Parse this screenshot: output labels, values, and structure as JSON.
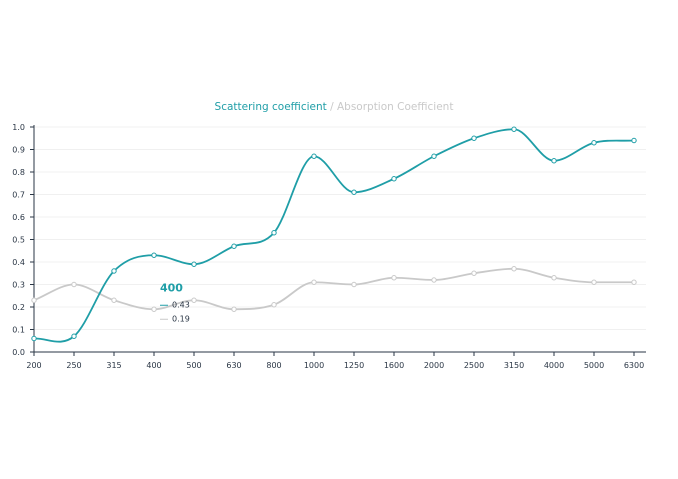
{
  "legend": {
    "series1": "Scattering coefficient",
    "separator": " / ",
    "series2": "Absorption Coefficient"
  },
  "tooltip": {
    "category": "400",
    "value1": "0.43",
    "value2": "0.19"
  },
  "colors": {
    "series1": "#1f9ea7",
    "series2": "#c9c9c9",
    "axis": "#2a3645",
    "grid": "#f0f0f0"
  },
  "chart_data": {
    "type": "line",
    "categories": [
      "200",
      "250",
      "315",
      "400",
      "500",
      "630",
      "800",
      "1000",
      "1250",
      "1600",
      "2000",
      "2500",
      "3150",
      "4000",
      "5000",
      "6300"
    ],
    "series": [
      {
        "name": "Scattering coefficient",
        "values": [
          0.06,
          0.07,
          0.36,
          0.43,
          0.39,
          0.47,
          0.53,
          0.87,
          0.71,
          0.77,
          0.87,
          0.95,
          0.99,
          0.85,
          0.93,
          0.94
        ]
      },
      {
        "name": "Absorption Coefficient",
        "values": [
          0.23,
          0.3,
          0.23,
          0.19,
          0.23,
          0.19,
          0.21,
          0.31,
          0.3,
          0.33,
          0.32,
          0.35,
          0.37,
          0.33,
          0.31,
          0.31
        ]
      }
    ],
    "ylim": [
      0,
      1.0
    ],
    "yticks": [
      "0.0",
      "0.1",
      "0.2",
      "0.3",
      "0.4",
      "0.5",
      "0.6",
      "0.7",
      "0.8",
      "0.9",
      "1.0"
    ],
    "grid": true,
    "legend_position": "top-center"
  }
}
